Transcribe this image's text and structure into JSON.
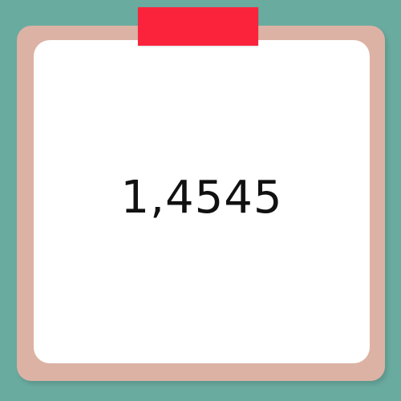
{
  "card": {
    "value": "1,4545"
  },
  "colors": {
    "background": "#6aaba0",
    "frame": "#dcb2a4",
    "card": "#ffffff",
    "tape": "#fb233c",
    "text": "#111111"
  }
}
